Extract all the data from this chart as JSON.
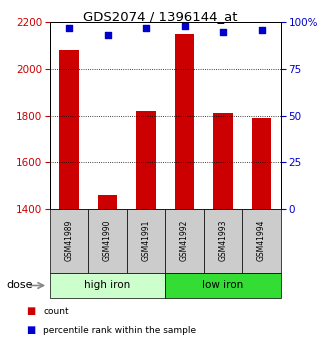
{
  "title": "GDS2074 / 1396144_at",
  "samples": [
    "GSM41989",
    "GSM41990",
    "GSM41991",
    "GSM41992",
    "GSM41993",
    "GSM41994"
  ],
  "bar_values": [
    2080,
    1460,
    1820,
    2150,
    1810,
    1790
  ],
  "percentile_values": [
    97,
    93,
    97,
    98,
    95,
    96
  ],
  "ylim_left": [
    1400,
    2200
  ],
  "ylim_right": [
    0,
    100
  ],
  "yticks_left": [
    1400,
    1600,
    1800,
    2000,
    2200
  ],
  "yticks_right": [
    0,
    25,
    50,
    75,
    100
  ],
  "bar_color": "#cc0000",
  "dot_color": "#0000cc",
  "groups": [
    {
      "label": "high iron",
      "indices": [
        0,
        1,
        2
      ],
      "color": "#ccffcc"
    },
    {
      "label": "low iron",
      "indices": [
        3,
        4,
        5
      ],
      "color": "#33dd33"
    }
  ],
  "dose_label": "dose",
  "legend_count_label": "count",
  "legend_pct_label": "percentile rank within the sample",
  "bar_width": 0.5,
  "background_color": "#ffffff",
  "left_label_color": "#cc0000",
  "right_label_color": "#0000cc",
  "sample_box_color": "#cccccc"
}
